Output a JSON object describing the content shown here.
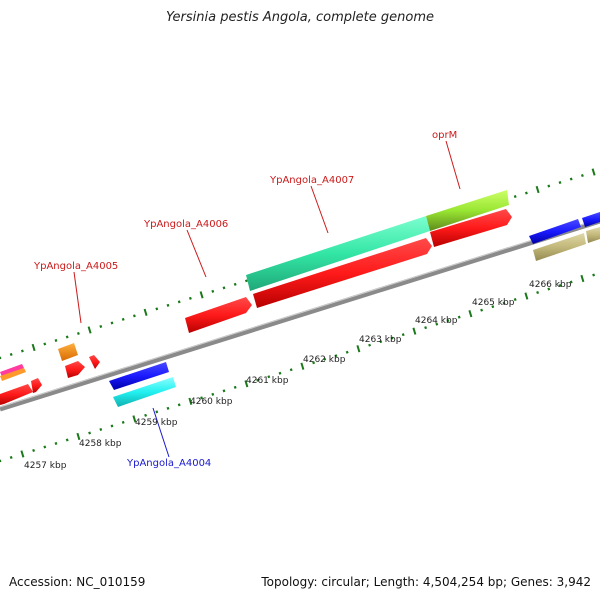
{
  "title": "Yersinia pestis Angola, complete genome",
  "footer": {
    "accession": "Accession: NC_010159",
    "summary": "Topology: circular; Length: 4,504,254 bp; Genes: 3,942"
  },
  "kbp_ticks": [
    "4257 kbp",
    "4258 kbp",
    "4259 kbp",
    "4260 kbp",
    "4261 kbp",
    "4262 kbp",
    "4263 kbp",
    "4264 kbp",
    "4265 kbp",
    "4266 kbp"
  ],
  "genes": [
    {
      "name": "YpAngola_A4004",
      "color": "#1a1acc",
      "strand": "reverse"
    },
    {
      "name": "YpAngola_A4005",
      "color": "#d11a1a",
      "strand": "forward"
    },
    {
      "name": "YpAngola_A4006",
      "color": "#d11a1a",
      "strand": "forward"
    },
    {
      "name": "YpAngola_A4007",
      "color": "#d11a1a",
      "strand": "forward"
    },
    {
      "name": "oprM",
      "color": "#d11a1a",
      "strand": "forward"
    }
  ],
  "colors": {
    "backbone": "#888888",
    "tick": "#1a7a1a",
    "cds_forward": "#ff1a1a",
    "cds_reverse": "#1a1aff",
    "cyan": "#22f0f0",
    "teal": "#33e6a6",
    "lime": "#99e633",
    "orange": "#ff8800",
    "khaki": "#c2b87a"
  }
}
